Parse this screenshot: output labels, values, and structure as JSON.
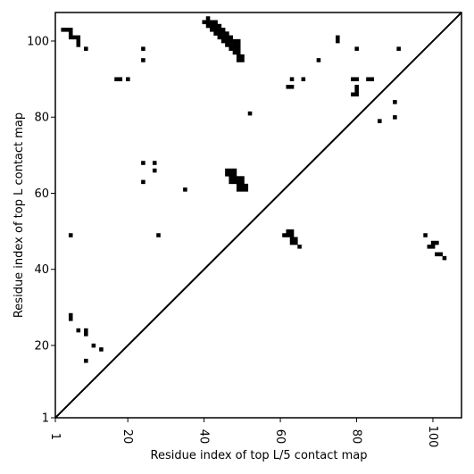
{
  "chart_data": {
    "type": "heatmap",
    "xlabel": "Residue index of top L/5 contact map",
    "ylabel": "Residue index of top L contact map",
    "xlim": [
      1,
      107.5
    ],
    "ylim": [
      1,
      107.5
    ],
    "xticks": [
      1,
      20,
      40,
      60,
      80,
      100
    ],
    "yticks": [
      1,
      20,
      40,
      60,
      80,
      100
    ],
    "xtick_labels": [
      "1",
      "20",
      "40",
      "60",
      "80",
      "100"
    ],
    "ytick_labels": [
      "1",
      "20",
      "40",
      "60",
      "80",
      "100"
    ],
    "diagonal": true,
    "contact_color": "#000000",
    "cells": [
      [
        3,
        103
      ],
      [
        4,
        103
      ],
      [
        5,
        103
      ],
      [
        5,
        102
      ],
      [
        5,
        101
      ],
      [
        6,
        101
      ],
      [
        7,
        101
      ],
      [
        7,
        100
      ],
      [
        7,
        99
      ],
      [
        9,
        98
      ],
      [
        24,
        98
      ],
      [
        24,
        95
      ],
      [
        80,
        98
      ],
      [
        91,
        98
      ],
      [
        75,
        101
      ],
      [
        75,
        100
      ],
      [
        41,
        106
      ],
      [
        40,
        105
      ],
      [
        41,
        105
      ],
      [
        42,
        105
      ],
      [
        43,
        105
      ],
      [
        41,
        104
      ],
      [
        42,
        104
      ],
      [
        43,
        104
      ],
      [
        44,
        104
      ],
      [
        42,
        103
      ],
      [
        43,
        103
      ],
      [
        44,
        103
      ],
      [
        45,
        103
      ],
      [
        43,
        102
      ],
      [
        44,
        102
      ],
      [
        45,
        102
      ],
      [
        46,
        102
      ],
      [
        44,
        101
      ],
      [
        45,
        101
      ],
      [
        46,
        101
      ],
      [
        47,
        101
      ],
      [
        45,
        100
      ],
      [
        46,
        100
      ],
      [
        47,
        100
      ],
      [
        48,
        100
      ],
      [
        49,
        100
      ],
      [
        46,
        99
      ],
      [
        47,
        99
      ],
      [
        48,
        99
      ],
      [
        49,
        99
      ],
      [
        47,
        98
      ],
      [
        48,
        98
      ],
      [
        49,
        98
      ],
      [
        48,
        97
      ],
      [
        49,
        97
      ],
      [
        49,
        96
      ],
      [
        50,
        96
      ],
      [
        49,
        95
      ],
      [
        50,
        95
      ],
      [
        17,
        90
      ],
      [
        18,
        90
      ],
      [
        20,
        90
      ],
      [
        63,
        90
      ],
      [
        66,
        90
      ],
      [
        79,
        90
      ],
      [
        80,
        90
      ],
      [
        83,
        90
      ],
      [
        84,
        90
      ],
      [
        62,
        88
      ],
      [
        63,
        88
      ],
      [
        80,
        88
      ],
      [
        80,
        87
      ],
      [
        79,
        86
      ],
      [
        80,
        86
      ],
      [
        70,
        95
      ],
      [
        90,
        84
      ],
      [
        52,
        81
      ],
      [
        86,
        79
      ],
      [
        90,
        80
      ],
      [
        24,
        68
      ],
      [
        27,
        68
      ],
      [
        27,
        66
      ],
      [
        24,
        63
      ],
      [
        35,
        61
      ],
      [
        46,
        66
      ],
      [
        47,
        66
      ],
      [
        48,
        66
      ],
      [
        46,
        65
      ],
      [
        47,
        65
      ],
      [
        48,
        65
      ],
      [
        47,
        64
      ],
      [
        48,
        64
      ],
      [
        49,
        64
      ],
      [
        50,
        64
      ],
      [
        47,
        63
      ],
      [
        48,
        63
      ],
      [
        49,
        63
      ],
      [
        50,
        63
      ],
      [
        49,
        62
      ],
      [
        50,
        62
      ],
      [
        51,
        62
      ],
      [
        49,
        61
      ],
      [
        50,
        61
      ],
      [
        51,
        61
      ],
      [
        5,
        49
      ],
      [
        28,
        49
      ],
      [
        61,
        49
      ],
      [
        62,
        49
      ],
      [
        62,
        50
      ],
      [
        63,
        50
      ],
      [
        63,
        49
      ],
      [
        63,
        48
      ],
      [
        64,
        48
      ],
      [
        63,
        47
      ],
      [
        64,
        47
      ],
      [
        65,
        46
      ],
      [
        98,
        49
      ],
      [
        100,
        47
      ],
      [
        101,
        47
      ],
      [
        99,
        46
      ],
      [
        100,
        46
      ],
      [
        101,
        44
      ],
      [
        102,
        44
      ],
      [
        103,
        43
      ],
      [
        5,
        28
      ],
      [
        5,
        27
      ],
      [
        7,
        24
      ],
      [
        9,
        24
      ],
      [
        9,
        23
      ],
      [
        11,
        20
      ],
      [
        13,
        19
      ],
      [
        9,
        16
      ]
    ]
  }
}
